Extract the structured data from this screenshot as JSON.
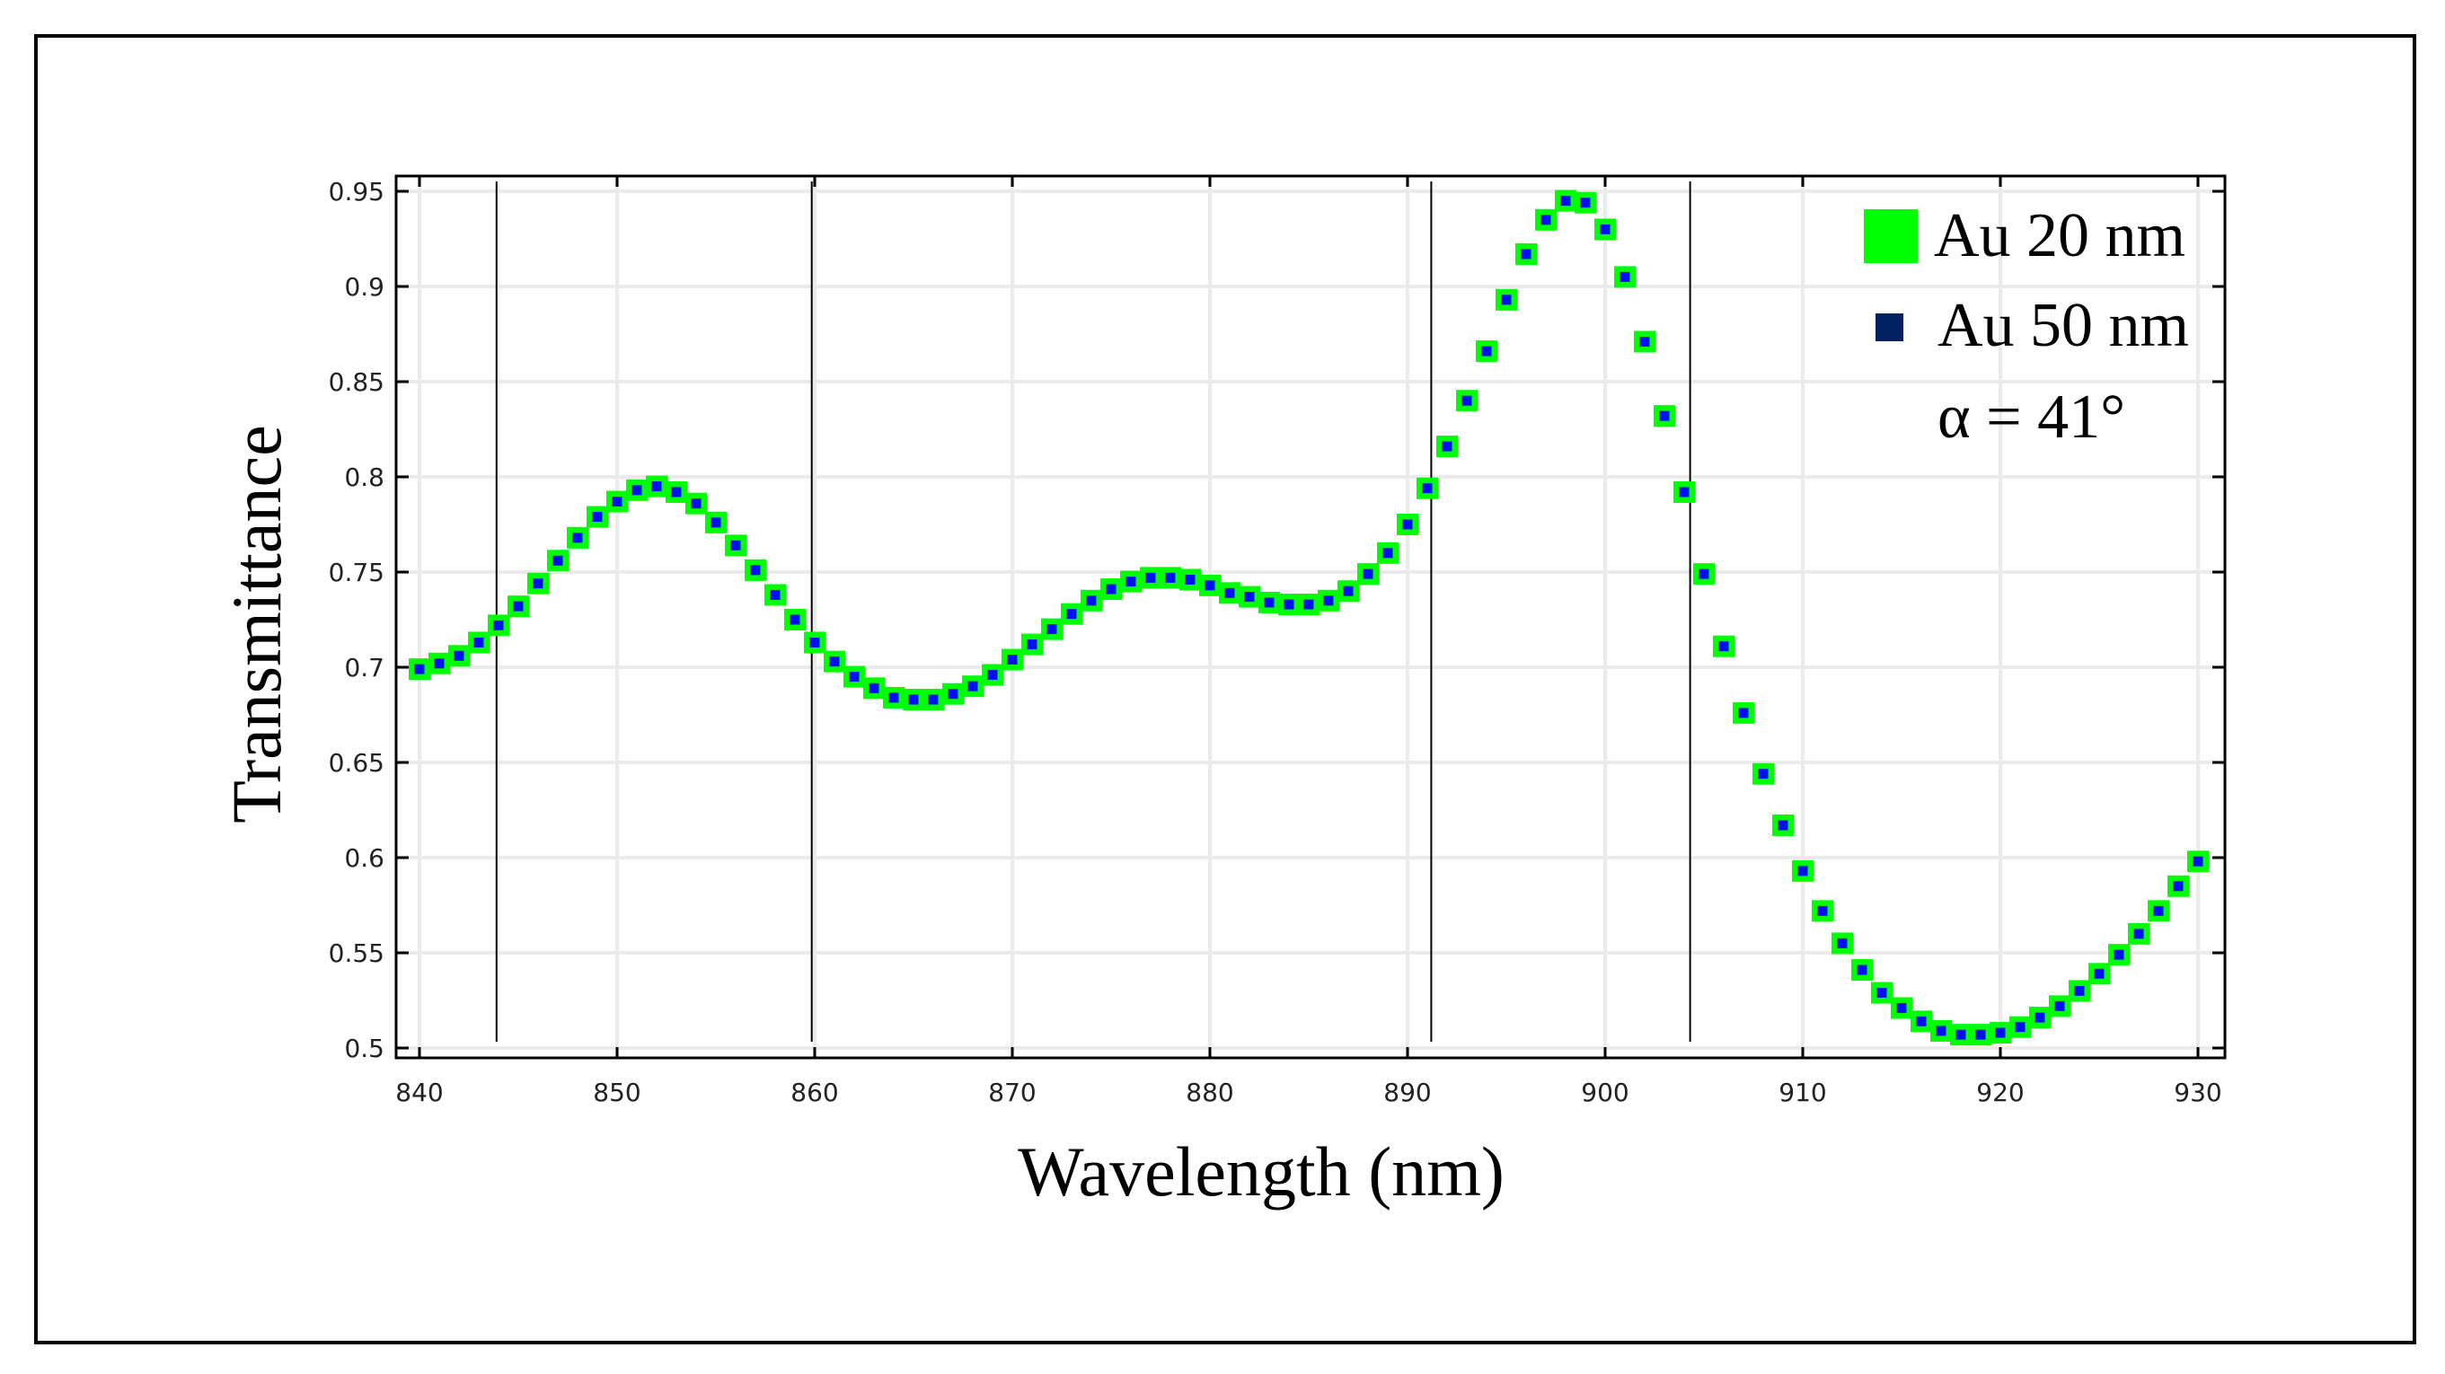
{
  "figure": {
    "frame_color": "#000000",
    "background": "#ffffff"
  },
  "colors": {
    "au20_marker": "#00ff00",
    "au50_marker_plot": "#0010ee",
    "au50_marker_legend": "#002060",
    "grid": "#ebebeb",
    "axis": "#000000",
    "reference_lines": "#000000"
  },
  "legend": {
    "items": [
      {
        "label": "Au 20 nm",
        "color": "#00ff00",
        "marker": "large-square"
      },
      {
        "label": "Au 50 nm",
        "color": "#002060",
        "marker": "small-square"
      }
    ],
    "annotation": "α = 41°"
  },
  "axes": {
    "xlabel": "Wavelength (nm)",
    "ylabel": "Transmittance",
    "xticks": [
      "840",
      "850",
      "860",
      "870",
      "880",
      "890",
      "900",
      "910",
      "920",
      "930"
    ],
    "yticks": [
      "0.5",
      "0.55",
      "0.6",
      "0.65",
      "0.7",
      "0.75",
      "0.8",
      "0.85",
      "0.9",
      "0.95"
    ]
  },
  "chart_data": {
    "type": "scatter",
    "title": "",
    "xlabel": "Wavelength (nm)",
    "ylabel": "Transmittance",
    "xlim": [
      838.8,
      931.4
    ],
    "ylim": [
      0.495,
      0.958
    ],
    "grid": true,
    "legend_position": "upper right",
    "annotations": [
      "α = 41°"
    ],
    "reference_vertical_lines_x": [
      843.9,
      859.85,
      891.2,
      904.3
    ],
    "x": [
      840,
      841,
      842,
      843,
      844,
      845,
      846,
      847,
      848,
      849,
      850,
      851,
      852,
      853,
      854,
      855,
      856,
      857,
      858,
      859,
      860,
      861,
      862,
      863,
      864,
      865,
      866,
      867,
      868,
      869,
      870,
      871,
      872,
      873,
      874,
      875,
      876,
      877,
      878,
      879,
      880,
      881,
      882,
      883,
      884,
      885,
      886,
      887,
      888,
      889,
      890,
      891,
      892,
      893,
      894,
      895,
      896,
      897,
      898,
      899,
      900,
      901,
      902,
      903,
      904,
      905,
      906,
      907,
      908,
      909,
      910,
      911,
      912,
      913,
      914,
      915,
      916,
      917,
      918,
      919,
      920,
      921,
      922,
      923,
      924,
      925,
      926,
      927,
      928,
      929,
      930
    ],
    "series": [
      {
        "name": "Au 20 nm",
        "color": "#00ff00",
        "values": [
          0.699,
          0.702,
          0.706,
          0.713,
          0.722,
          0.732,
          0.744,
          0.756,
          0.768,
          0.779,
          0.787,
          0.793,
          0.795,
          0.792,
          0.786,
          0.776,
          0.764,
          0.751,
          0.738,
          0.725,
          0.713,
          0.703,
          0.695,
          0.689,
          0.684,
          0.683,
          0.683,
          0.686,
          0.69,
          0.696,
          0.704,
          0.712,
          0.72,
          0.728,
          0.735,
          0.741,
          0.745,
          0.747,
          0.747,
          0.746,
          0.743,
          0.739,
          0.737,
          0.734,
          0.733,
          0.733,
          0.735,
          0.74,
          0.749,
          0.76,
          0.775,
          0.794,
          0.816,
          0.84,
          0.866,
          0.893,
          0.917,
          0.935,
          0.945,
          0.944,
          0.93,
          0.905,
          0.871,
          0.832,
          0.792,
          0.749,
          0.711,
          0.676,
          0.644,
          0.617,
          0.593,
          0.572,
          0.555,
          0.541,
          0.529,
          0.521,
          0.514,
          0.509,
          0.507,
          0.507,
          0.508,
          0.511,
          0.516,
          0.522,
          0.53,
          0.539,
          0.549,
          0.56,
          0.572,
          0.585,
          0.598
        ]
      },
      {
        "name": "Au 50 nm",
        "color": "#0010ee",
        "values": [
          0.699,
          0.702,
          0.706,
          0.713,
          0.722,
          0.732,
          0.744,
          0.756,
          0.768,
          0.779,
          0.787,
          0.793,
          0.795,
          0.792,
          0.786,
          0.776,
          0.764,
          0.751,
          0.738,
          0.725,
          0.713,
          0.703,
          0.695,
          0.689,
          0.684,
          0.683,
          0.683,
          0.686,
          0.69,
          0.696,
          0.704,
          0.712,
          0.72,
          0.728,
          0.735,
          0.741,
          0.745,
          0.747,
          0.747,
          0.746,
          0.743,
          0.739,
          0.737,
          0.734,
          0.733,
          0.733,
          0.735,
          0.74,
          0.749,
          0.76,
          0.775,
          0.794,
          0.816,
          0.84,
          0.866,
          0.893,
          0.917,
          0.935,
          0.945,
          0.944,
          0.93,
          0.905,
          0.871,
          0.832,
          0.792,
          0.749,
          0.711,
          0.676,
          0.644,
          0.617,
          0.593,
          0.572,
          0.555,
          0.541,
          0.529,
          0.521,
          0.514,
          0.509,
          0.507,
          0.507,
          0.508,
          0.511,
          0.516,
          0.522,
          0.53,
          0.539,
          0.549,
          0.56,
          0.572,
          0.585,
          0.598
        ]
      }
    ]
  }
}
